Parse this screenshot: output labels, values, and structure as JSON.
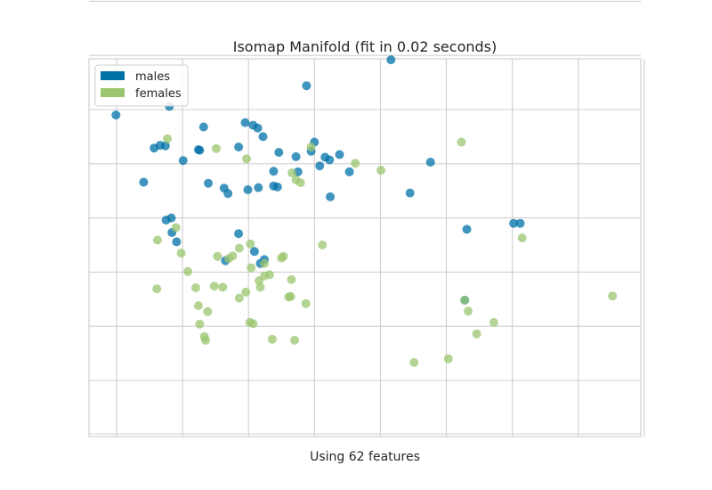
{
  "chart_data": {
    "type": "scatter",
    "title": "Isomap Manifold (fit in 0.02 seconds)",
    "xlabel": "Using 62 features",
    "ylabel": "",
    "x_ticks_labeled": false,
    "y_ticks_labeled": false,
    "grid": true,
    "legend_position": "top-left",
    "series": [
      {
        "name": "males",
        "color": "#0072a8",
        "points": [
          [
            -0.1,
            69
          ],
          [
            63.2,
            97.8
          ],
          [
            41.6,
            79.2
          ],
          [
            28.8,
            74.4
          ],
          [
            8,
            70.6
          ],
          [
            13.2,
            66.8
          ],
          [
            19.5,
            67.6
          ],
          [
            20.7,
            67.1
          ],
          [
            22.2,
            65
          ],
          [
            21.4,
            66.6
          ],
          [
            10.1,
            60.6
          ],
          [
            5.7,
            62.9
          ],
          [
            6.6,
            63.4
          ],
          [
            7.4,
            63.3
          ],
          [
            12.4,
            62.6
          ],
          [
            12.6,
            62.5
          ],
          [
            18.5,
            63.1
          ],
          [
            24.6,
            62.1
          ],
          [
            27.2,
            61.3
          ],
          [
            30,
            64
          ],
          [
            29.5,
            62.3
          ],
          [
            31.6,
            61.2
          ],
          [
            32.3,
            60.7
          ],
          [
            30.8,
            59.6
          ],
          [
            23.8,
            58.6
          ],
          [
            27.5,
            58.5
          ],
          [
            33.8,
            61.7
          ],
          [
            4.1,
            56.6
          ],
          [
            13.9,
            56.4
          ],
          [
            16.3,
            55.5
          ],
          [
            19.9,
            55.2
          ],
          [
            21.5,
            55.6
          ],
          [
            23.8,
            55.9
          ],
          [
            24.4,
            55.7
          ],
          [
            16.9,
            54.5
          ],
          [
            32.4,
            53.9
          ],
          [
            35.3,
            58.5
          ],
          [
            7.5,
            49.6
          ],
          [
            8.3,
            50
          ],
          [
            53.1,
            47.9
          ],
          [
            60.2,
            49
          ],
          [
            61.2,
            49
          ],
          [
            8.4,
            47.3
          ],
          [
            9.1,
            45.6
          ],
          [
            18.5,
            47.1
          ],
          [
            16.5,
            42.1
          ],
          [
            21.8,
            41.6
          ],
          [
            22.4,
            42.3
          ],
          [
            20.9,
            43.8
          ],
          [
            44.5,
            54.6
          ],
          [
            52.8,
            34.8
          ],
          [
            47.6,
            60.3
          ]
        ]
      },
      {
        "name": "females",
        "color": "#9bc56f",
        "points": [
          [
            7.7,
            64.6
          ],
          [
            15.1,
            62.8
          ],
          [
            19.7,
            60.9
          ],
          [
            26.6,
            58.3
          ],
          [
            27.2,
            57
          ],
          [
            27.9,
            56.5
          ],
          [
            29.5,
            63.1
          ],
          [
            36.2,
            60.1
          ],
          [
            40.1,
            58.8
          ],
          [
            52.3,
            64
          ],
          [
            61.5,
            46.3
          ],
          [
            75.2,
            35.6
          ],
          [
            6.2,
            45.9
          ],
          [
            9,
            48.2
          ],
          [
            15.3,
            42.9
          ],
          [
            18.6,
            44.4
          ],
          [
            17,
            42.5
          ],
          [
            17.6,
            43
          ],
          [
            20.3,
            45.2
          ],
          [
            22.4,
            41.6
          ],
          [
            25,
            42.6
          ],
          [
            25.3,
            42.9
          ],
          [
            31.2,
            45
          ],
          [
            9.8,
            43.5
          ],
          [
            10.8,
            40.1
          ],
          [
            6.1,
            36.9
          ],
          [
            12,
            37.1
          ],
          [
            14.8,
            37.4
          ],
          [
            16.1,
            37.2
          ],
          [
            20.4,
            40.8
          ],
          [
            22.4,
            39.3
          ],
          [
            23.2,
            39.5
          ],
          [
            21.6,
            38.4
          ],
          [
            26.5,
            38.6
          ],
          [
            18.6,
            35.2
          ],
          [
            19.6,
            36.3
          ],
          [
            21.8,
            37.2
          ],
          [
            26.4,
            35.5
          ],
          [
            13.8,
            32.7
          ],
          [
            26.1,
            35.4
          ],
          [
            12.6,
            30.4
          ],
          [
            12.4,
            33.8
          ],
          [
            13.3,
            28.1
          ],
          [
            13.5,
            27.4
          ],
          [
            20.2,
            30.7
          ],
          [
            20.7,
            30.5
          ],
          [
            23.6,
            27.6
          ],
          [
            27,
            27.4
          ],
          [
            28.7,
            34.2
          ],
          [
            45.1,
            23.3
          ],
          [
            50.3,
            24
          ],
          [
            54.6,
            28.6
          ],
          [
            57.2,
            30.7
          ],
          [
            52.8,
            34.8
          ],
          [
            53.3,
            32.8
          ]
        ]
      }
    ]
  }
}
